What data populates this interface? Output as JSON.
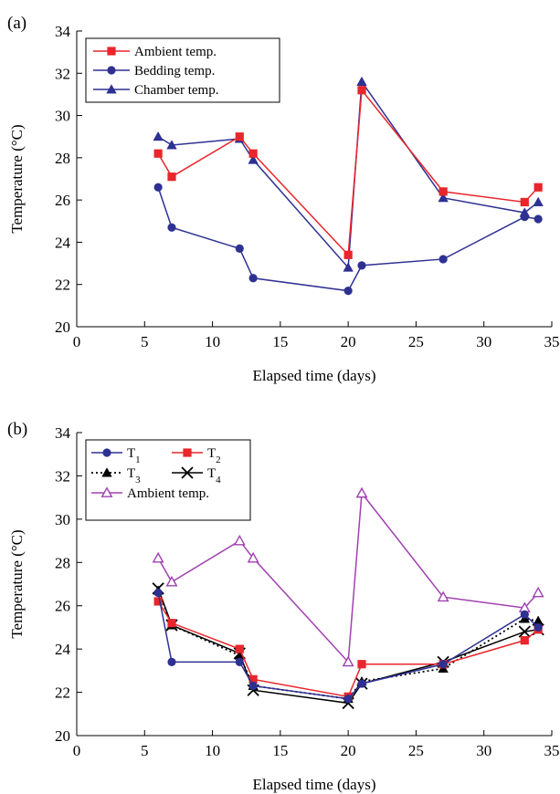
{
  "chart_data": [
    {
      "panel_label": "(a)",
      "type": "line",
      "xlabel": "Elapsed time (days)",
      "ylabel": "Temperature (°C)",
      "xlim": [
        0,
        35
      ],
      "ylim": [
        20,
        34
      ],
      "xticks": [
        "0",
        "5",
        "10",
        "15",
        "20",
        "25",
        "30",
        "35"
      ],
      "yticks": [
        "20",
        "22",
        "24",
        "26",
        "28",
        "30",
        "32",
        "34"
      ],
      "grid": false,
      "legend_position": "top-left",
      "series": [
        {
          "name": "Ambient temp.",
          "color": "#e8262b",
          "marker": "square-filled",
          "dash": "solid",
          "x": [
            6,
            7,
            12,
            13,
            20,
            21,
            27,
            33,
            34
          ],
          "y": [
            28.2,
            27.1,
            29.0,
            28.2,
            23.4,
            31.2,
            26.4,
            25.9,
            26.6
          ]
        },
        {
          "name": "Bedding temp.",
          "color": "#2e3192",
          "marker": "circle-filled",
          "dash": "solid",
          "x": [
            6,
            7,
            12,
            13,
            20,
            21,
            27,
            33,
            34
          ],
          "y": [
            26.6,
            24.7,
            23.7,
            22.3,
            21.7,
            22.9,
            23.2,
            25.2,
            25.1
          ]
        },
        {
          "name": "Chamber temp.",
          "color": "#2e3192",
          "marker": "triangle-filled",
          "dash": "solid",
          "x": [
            6,
            7,
            12,
            13,
            20,
            21,
            27,
            33,
            34
          ],
          "y": [
            29.0,
            28.6,
            28.9,
            27.9,
            22.8,
            31.6,
            26.1,
            25.4,
            25.9
          ]
        }
      ]
    },
    {
      "panel_label": "(b)",
      "type": "line",
      "xlabel": "Elapsed time (days)",
      "ylabel": "Temperature (°C)",
      "xlim": [
        0,
        35
      ],
      "ylim": [
        20,
        34
      ],
      "xticks": [
        "0",
        "5",
        "10",
        "15",
        "20",
        "25",
        "30",
        "35"
      ],
      "yticks": [
        "20",
        "22",
        "24",
        "26",
        "28",
        "30",
        "32",
        "34"
      ],
      "grid": false,
      "legend_position": "top-left",
      "series": [
        {
          "name": "T",
          "sub": "1",
          "color": "#2e3192",
          "marker": "circle-filled",
          "dash": "solid",
          "x": [
            6,
            7,
            12,
            13,
            20,
            21,
            27,
            33,
            34
          ],
          "y": [
            26.6,
            23.4,
            23.4,
            22.3,
            21.7,
            22.4,
            23.3,
            25.6,
            25.0
          ]
        },
        {
          "name": "T",
          "sub": "2",
          "color": "#e8262b",
          "marker": "square-filled",
          "dash": "solid",
          "x": [
            6,
            7,
            12,
            13,
            20,
            21,
            27,
            33,
            34
          ],
          "y": [
            26.2,
            25.2,
            24.0,
            22.6,
            21.8,
            23.3,
            23.3,
            24.4,
            24.9
          ]
        },
        {
          "name": "T",
          "sub": "3",
          "color": "#000000",
          "marker": "triangle-filled",
          "dash": "dotted",
          "x": [
            6,
            7,
            12,
            13,
            20,
            21,
            27,
            33,
            34
          ],
          "y": [
            26.7,
            25.1,
            23.7,
            22.3,
            21.7,
            22.5,
            23.1,
            25.4,
            25.3
          ]
        },
        {
          "name": "T",
          "sub": "4",
          "color": "#000000",
          "marker": "x",
          "dash": "solid",
          "x": [
            6,
            7,
            12,
            13,
            20,
            21,
            27,
            33,
            34
          ],
          "y": [
            26.8,
            25.1,
            23.8,
            22.1,
            21.5,
            22.4,
            23.4,
            24.8,
            24.9
          ]
        },
        {
          "name": "Ambient temp.",
          "color": "#a040b0",
          "marker": "triangle-open",
          "dash": "solid",
          "x": [
            6,
            7,
            12,
            13,
            20,
            21,
            27,
            33,
            34
          ],
          "y": [
            28.2,
            27.1,
            29.0,
            28.2,
            23.4,
            31.2,
            26.4,
            25.9,
            26.6
          ]
        }
      ]
    }
  ]
}
